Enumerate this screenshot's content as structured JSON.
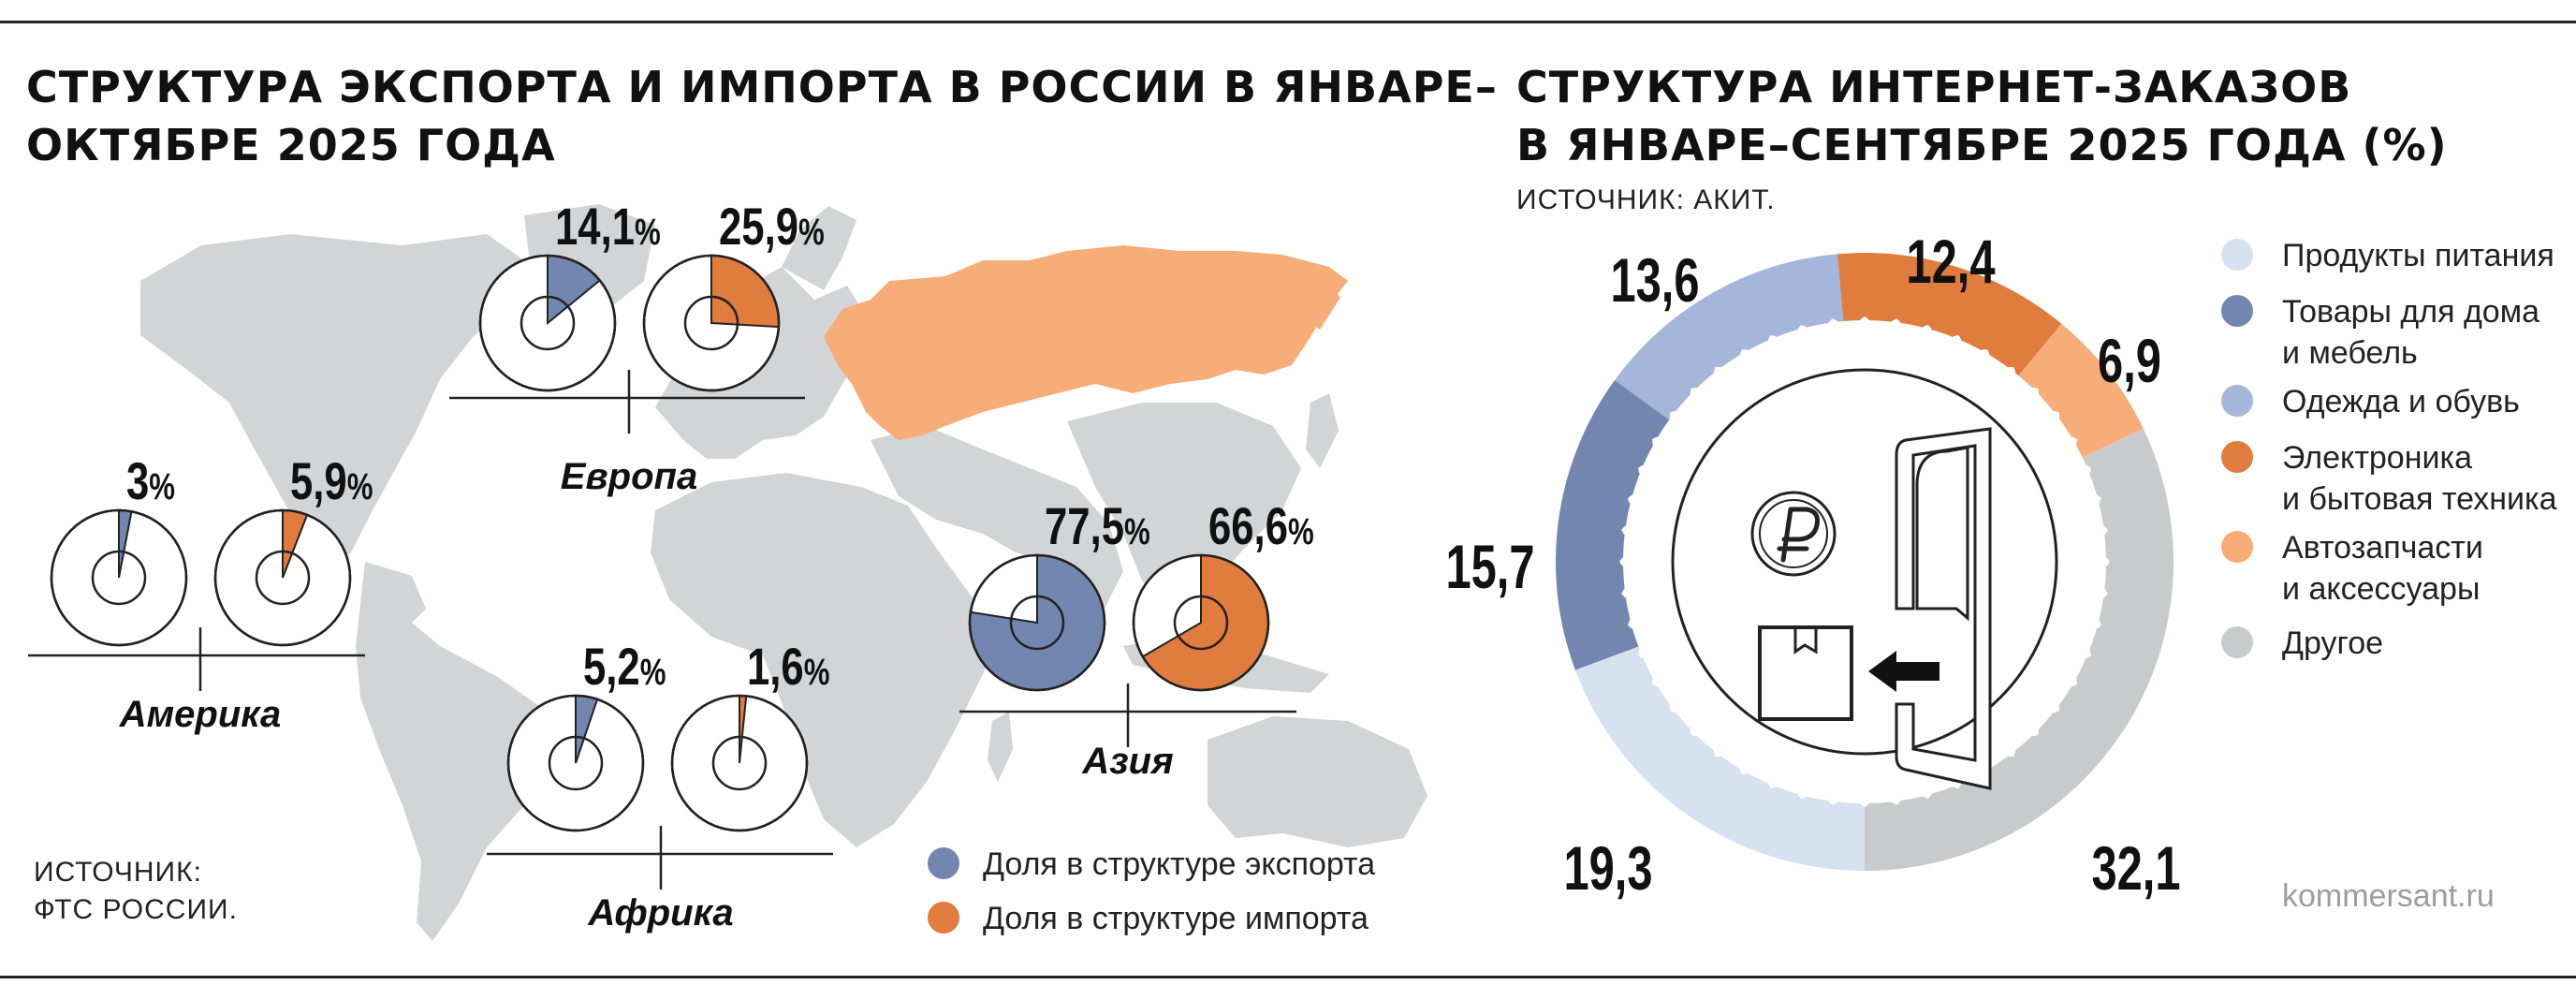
{
  "colors": {
    "export": "#7286b0",
    "import": "#e07c3e",
    "russia": "#f8ad78",
    "land": "#d2d4d6"
  },
  "left": {
    "title_line1": "Структура экспорта и импорта в России в январе–",
    "title_line2": "октябре 2025 года",
    "source_line1": "ИСТОЧНИК:",
    "source_line2": "ФТС РОССИИ.",
    "legend": [
      {
        "label": "Доля в структуре экспорта",
        "color": "#7286b0"
      },
      {
        "label": "Доля в структуре импорта",
        "color": "#e07c3e"
      }
    ]
  },
  "right": {
    "title_line1": "Структура интернет-заказов",
    "title_line2": "в январе–сентябре 2025 года (%)",
    "source": "ИСТОЧНИК: АКИТ.",
    "credit": "kommersant.ru",
    "legend": [
      {
        "label1": "Продукты питания",
        "label2": "",
        "color": "#d6e1f2"
      },
      {
        "label1": "Товары для дома",
        "label2": "и мебель",
        "color": "#7286b0"
      },
      {
        "label1": "Одежда и обувь",
        "label2": "",
        "color": "#a4b7da"
      },
      {
        "label1": "Электроника",
        "label2": "и бытовая техника",
        "color": "#e07c3e"
      },
      {
        "label1": "Автозапчасти",
        "label2": "и аксессуары",
        "color": "#f8ad78"
      },
      {
        "label1": "Другое",
        "label2": "",
        "color": "#c8cacc"
      }
    ]
  },
  "chart_data": [
    {
      "type": "pie",
      "title": "Структура экспорта и импорта в России в январе–октябре 2025 года",
      "series": [
        {
          "name": "Доля в структуре экспорта",
          "color": "#7286b0"
        },
        {
          "name": "Доля в структуре импорта",
          "color": "#e07c3e"
        }
      ],
      "regions": [
        {
          "name": "Европа",
          "export": 14.1,
          "import": 25.9,
          "export_label": "14,1%",
          "import_label": "25,9%"
        },
        {
          "name": "Америка",
          "export": 3.0,
          "import": 5.9,
          "export_label": "3%",
          "import_label": "5,9%"
        },
        {
          "name": "Африка",
          "export": 5.2,
          "import": 1.6,
          "export_label": "5,2%",
          "import_label": "1,6%"
        },
        {
          "name": "Азия",
          "export": 77.5,
          "import": 66.6,
          "export_label": "77,5%",
          "import_label": "66,6%"
        }
      ]
    },
    {
      "type": "pie",
      "title": "Структура интернет-заказов в январе–сентябре 2025 года (%)",
      "categories": [
        "Продукты питания",
        "Товары для дома и мебель",
        "Одежда и обувь",
        "Электроника и бытовая техника",
        "Автозапчасти и аксессуары",
        "Другое"
      ],
      "values": [
        19.3,
        15.7,
        13.6,
        12.4,
        6.9,
        32.1
      ],
      "labels": [
        "19,3",
        "15,7",
        "13,6",
        "12,4",
        "6,9",
        "32,1"
      ],
      "colors": [
        "#d6e1f2",
        "#7286b0",
        "#a4b7da",
        "#e07c3e",
        "#f8ad78",
        "#c8cacc"
      ]
    }
  ]
}
